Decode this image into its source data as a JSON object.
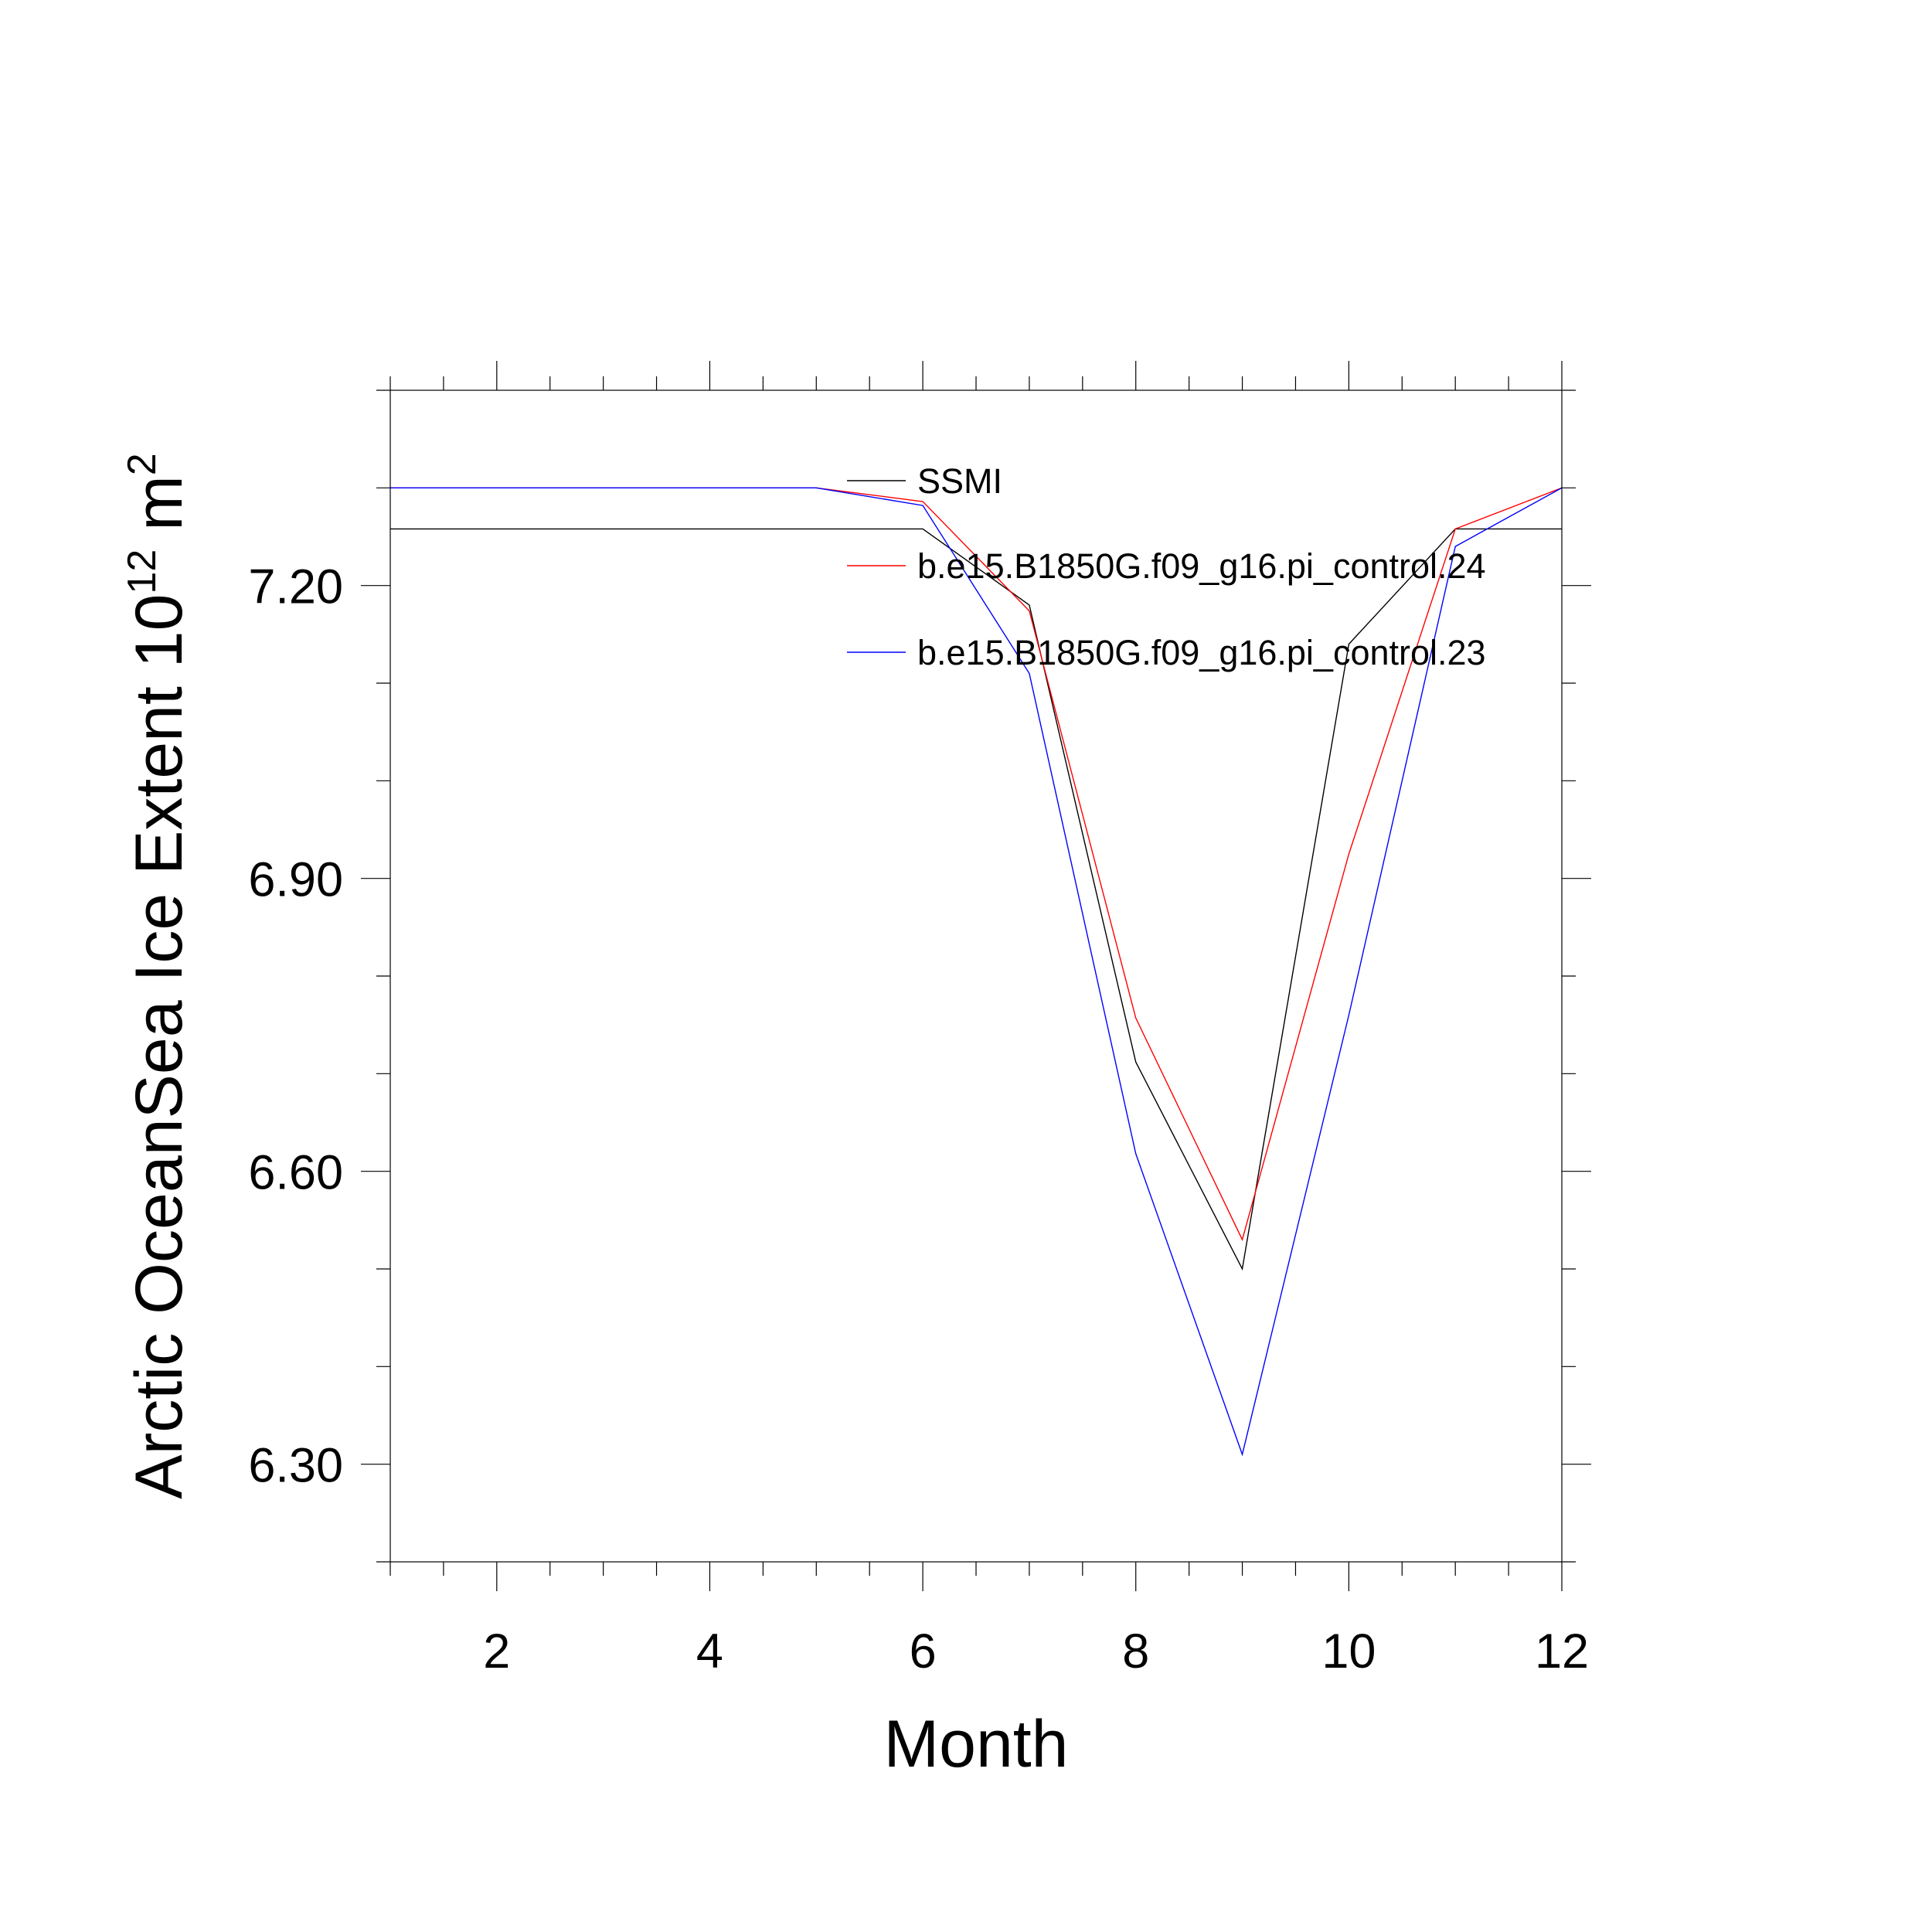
{
  "chart_data": {
    "type": "line",
    "xlabel": "Month",
    "ylabel_text": "Arctic OceanSea Ice Extent 10",
    "ylabel_sup1": "12",
    "ylabel_unit": " m",
    "ylabel_sup2": "2",
    "xlim": [
      1,
      12
    ],
    "ylim": [
      6.2,
      7.4
    ],
    "xticks": [
      2,
      4,
      6,
      8,
      10,
      12
    ],
    "yticks": [
      6.3,
      6.6,
      6.9,
      7.2
    ],
    "xtick_labels": [
      "2",
      "4",
      "6",
      "8",
      "10",
      "12"
    ],
    "ytick_labels": [
      "6.30",
      "6.60",
      "6.90",
      "7.20"
    ],
    "grid": false,
    "legend_position": "top-right",
    "x": [
      1,
      2,
      3,
      4,
      5,
      6,
      7,
      8,
      9,
      10,
      11,
      12
    ],
    "series": [
      {
        "name": "SSMI",
        "color": "#000000",
        "values": [
          7.258,
          7.258,
          7.258,
          7.258,
          7.258,
          7.258,
          7.18,
          6.712,
          6.5,
          7.14,
          7.258,
          7.258
        ]
      },
      {
        "name": "b.e15.B1850G.f09_g16.pi_control.24",
        "color": "#ff0000",
        "values": [
          7.3,
          7.3,
          7.3,
          7.3,
          7.3,
          7.286,
          7.174,
          6.757,
          6.53,
          6.925,
          7.258,
          7.3
        ]
      },
      {
        "name": "b.e15.B1850G.f09_g16.pi_control.23",
        "color": "#0000ff",
        "values": [
          7.3,
          7.3,
          7.3,
          7.3,
          7.3,
          7.282,
          7.11,
          6.618,
          6.31,
          6.76,
          7.24,
          7.3
        ]
      }
    ]
  }
}
